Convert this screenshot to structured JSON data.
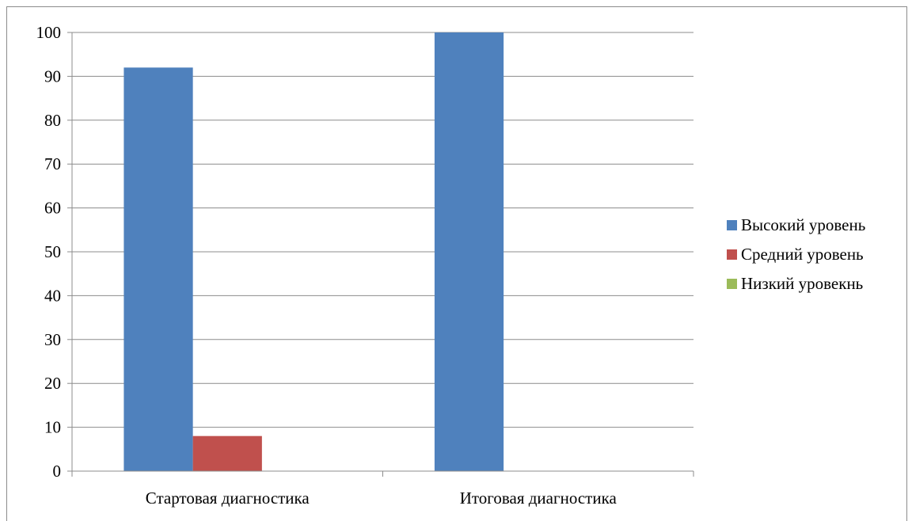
{
  "chart_data": {
    "type": "bar",
    "categories": [
      "Стартовая диагностика",
      "Итоговая диагностика"
    ],
    "series": [
      {
        "name": "Высокий уровень",
        "values": [
          92,
          100
        ],
        "color": "#4f81bd"
      },
      {
        "name": "Средний уровень",
        "values": [
          8,
          0
        ],
        "color": "#c0504d"
      },
      {
        "name": "Низкий уровекнь",
        "values": [
          0,
          0
        ],
        "color": "#9bbb59"
      }
    ],
    "ylim": [
      0,
      100
    ],
    "yticks": [
      0,
      10,
      20,
      30,
      40,
      50,
      60,
      70,
      80,
      90,
      100
    ],
    "title": "",
    "xlabel": "",
    "ylabel": "",
    "grid": true,
    "legend_position": "right"
  }
}
